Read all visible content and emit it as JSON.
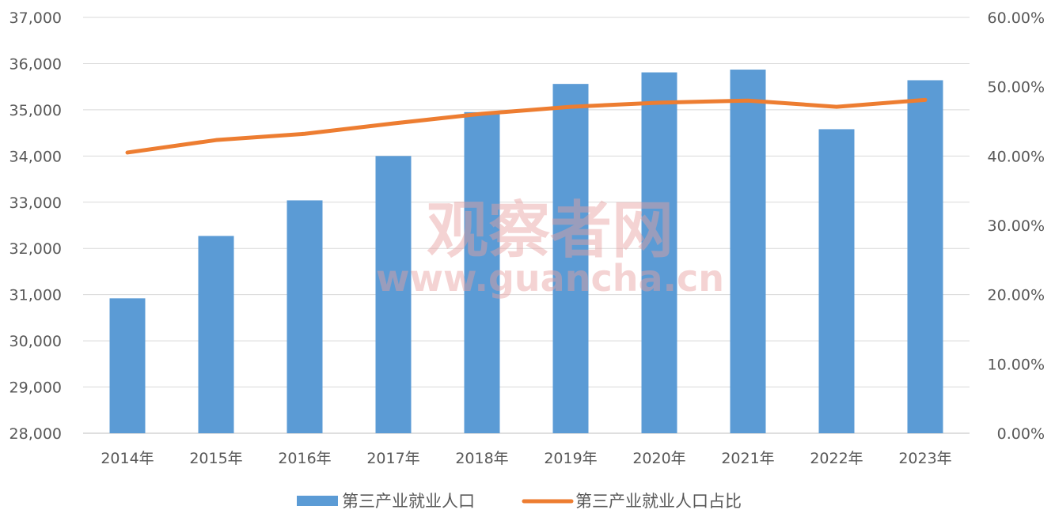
{
  "chart_data": {
    "type": "bar",
    "categories": [
      "2014年",
      "2015年",
      "2016年",
      "2017年",
      "2018年",
      "2019年",
      "2020年",
      "2021年",
      "2022年",
      "2023年"
    ],
    "series": [
      {
        "name": "第三产业就业人口",
        "type": "bar",
        "axis": "left",
        "color": "#5B9BD5",
        "values": [
          30920,
          32270,
          33040,
          34000,
          34950,
          35560,
          35810,
          35870,
          34580,
          35640
        ]
      },
      {
        "name": "第三产业就业人口占比",
        "type": "line",
        "axis": "right",
        "color": "#ED7D31",
        "values": [
          40.5,
          42.3,
          43.2,
          44.7,
          46.1,
          47.1,
          47.7,
          48.0,
          47.1,
          48.1
        ]
      }
    ],
    "y_left": {
      "lim": [
        28000,
        37000
      ],
      "ticks": [
        "28,000",
        "29,000",
        "30,000",
        "31,000",
        "32,000",
        "33,000",
        "34,000",
        "35,000",
        "36,000",
        "37,000"
      ]
    },
    "y_right": {
      "lim": [
        0,
        60
      ],
      "ticks": [
        "0.00%",
        "10.00%",
        "20.00%",
        "30.00%",
        "40.00%",
        "50.00%",
        "60.00%"
      ]
    },
    "grid": true,
    "legend_position": "bottom",
    "title": "",
    "xlabel": "",
    "ylabel": ""
  },
  "watermark": {
    "line1": "观察者网",
    "line2": "www.guancha.cn"
  }
}
